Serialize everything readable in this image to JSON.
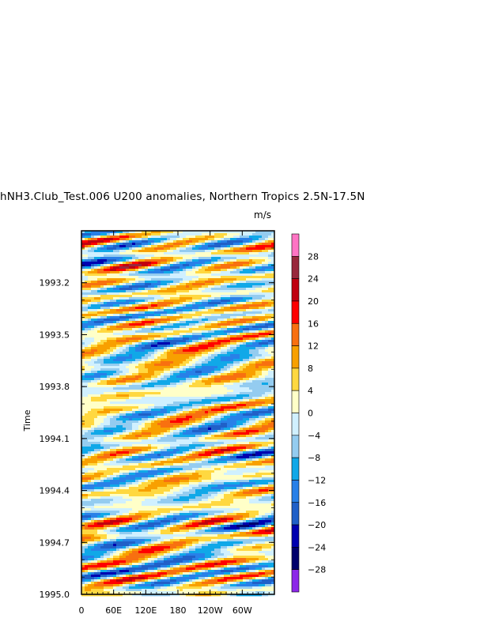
{
  "chart_data": {
    "type": "heatmap",
    "title": "hNH3.Club_Test.006 U200 anomalies, Northern Tropics 2.5N-17.5N",
    "units": "m/s",
    "ylabel": "Time",
    "xlabel": "",
    "x_ticks": [
      "0",
      "60E",
      "120E",
      "180",
      "120W",
      "60W"
    ],
    "y_ticks": [
      "1993.2",
      "1993.5",
      "1993.8",
      "1994.1",
      "1994.4",
      "1994.7",
      "1995.0"
    ],
    "ylim": [
      1995.0,
      1992.9
    ],
    "xlim": [
      0,
      360
    ],
    "colorbar": {
      "levels": [
        "28",
        "24",
        "20",
        "16",
        "12",
        "8",
        "4",
        "0",
        "-4",
        "-8",
        "-12",
        "-16",
        "-20",
        "-24",
        "-28"
      ],
      "colors": [
        "#ff74c4",
        "#98283c",
        "#c00010",
        "#ff0000",
        "#f87010",
        "#f8a000",
        "#ffd840",
        "#ffffc8",
        "#d0f0ff",
        "#94ccf0",
        "#10a8e8",
        "#2880e8",
        "#2060c8",
        "#0000b0",
        "#00006c",
        "#8c28e8"
      ]
    }
  }
}
